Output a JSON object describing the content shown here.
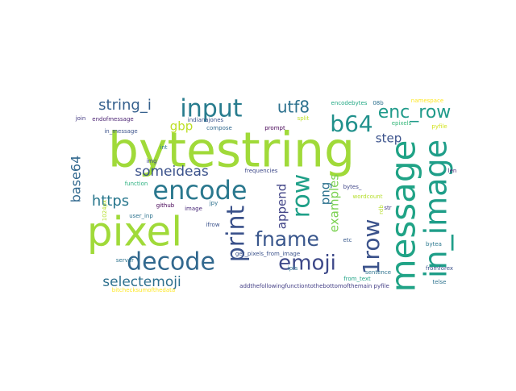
{
  "wordcloud": {
    "words": [
      {
        "id": "bytestring",
        "text": "bytestring",
        "color": "#a0da39"
      },
      {
        "id": "pixel",
        "text": "pixel",
        "color": "#a0da39"
      },
      {
        "id": "encode",
        "text": "encode",
        "color": "#2a788e"
      },
      {
        "id": "decode",
        "text": "decode",
        "color": "#31688e"
      },
      {
        "id": "message",
        "text": "message",
        "color": "#20a386"
      },
      {
        "id": "in-image",
        "text": "in_image",
        "color": "#1f9e89"
      },
      {
        "id": "input",
        "text": "input",
        "color": "#287c8e"
      },
      {
        "id": "print",
        "text": "print",
        "color": "#3b528b"
      },
      {
        "id": "emoji",
        "text": "emoji",
        "color": "#3e4989"
      },
      {
        "id": "fname",
        "text": "fname",
        "color": "#39568c"
      },
      {
        "id": "row",
        "text": "row",
        "color": "#1fa088"
      },
      {
        "id": "1row",
        "text": "1row",
        "color": "#3b528b"
      },
      {
        "id": "b64",
        "text": "b64",
        "color": "#21918c"
      },
      {
        "id": "enc-row",
        "text": "enc_row",
        "color": "#1f9a8a"
      },
      {
        "id": "utf8",
        "text": "utf8",
        "color": "#2c718e"
      },
      {
        "id": "string-i",
        "text": "string_i",
        "color": "#35608d"
      },
      {
        "id": "https",
        "text": "https",
        "color": "#2a788e"
      },
      {
        "id": "someideas",
        "text": "someideas",
        "color": "#3b528b"
      },
      {
        "id": "selectemoji",
        "text": "selectemoji",
        "color": "#2d708e"
      },
      {
        "id": "base64",
        "text": "base64",
        "color": "#31688e"
      },
      {
        "id": "gbp",
        "text": "gbp",
        "color": "#bddf26"
      },
      {
        "id": "step",
        "text": "step",
        "color": "#3b528b"
      },
      {
        "id": "examples",
        "text": "examples",
        "color": "#7ad151"
      },
      {
        "id": "append",
        "text": "append",
        "color": "#414487"
      },
      {
        "id": "png",
        "text": "png",
        "color": "#2c728e"
      },
      {
        "id": "join",
        "text": "join",
        "color": "#443a83"
      },
      {
        "id": "endofmessage",
        "text": "endofmessage",
        "color": "#481f70"
      },
      {
        "id": "indianajones",
        "text": "indianajones",
        "color": "#3b528b"
      },
      {
        "id": "split",
        "text": "split",
        "color": "#bddf26"
      },
      {
        "id": "encodebytes",
        "text": "encodebytes",
        "color": "#22a884"
      },
      {
        "id": "08b",
        "text": "08b",
        "color": "#2d708e"
      },
      {
        "id": "namespace",
        "text": "namespace",
        "color": "#fde725"
      },
      {
        "id": "in-message",
        "text": "in_message",
        "color": "#3b528b"
      },
      {
        "id": "compose",
        "text": "compose",
        "color": "#31688e"
      },
      {
        "id": "prompt",
        "text": "prompt",
        "color": "#440154"
      },
      {
        "id": "epixels",
        "text": "epixels",
        "color": "#35b779"
      },
      {
        "id": "pyfile",
        "text": "pyfile",
        "color": "#d2e21b"
      },
      {
        "id": "int",
        "text": "int",
        "color": "#2a788e"
      },
      {
        "id": "img",
        "text": "img",
        "color": "#3e4989"
      },
      {
        "id": "frequencies",
        "text": "frequencies",
        "color": "#3e4989"
      },
      {
        "id": "len",
        "text": "len",
        "color": "#482475"
      },
      {
        "id": "function",
        "text": "function",
        "color": "#2ab07f"
      },
      {
        "id": "bytes",
        "text": "bytes_",
        "color": "#404688"
      },
      {
        "id": "wordcount",
        "text": "wordcount",
        "color": "#b5de2b"
      },
      {
        "id": "rdb",
        "text": "rdb",
        "color": "#b5de2b"
      },
      {
        "id": "github",
        "text": "github",
        "color": "#440154"
      },
      {
        "id": "image",
        "text": "image",
        "color": "#482878"
      },
      {
        "id": "jpy",
        "text": "jpy",
        "color": "#2d708e"
      },
      {
        "id": "str",
        "text": "str",
        "color": "#443a83"
      },
      {
        "id": "user-inp",
        "text": "user_inp",
        "color": "#2c728e"
      },
      {
        "id": "ifrow",
        "text": "ifrow",
        "color": "#3b528b"
      },
      {
        "id": "1024px",
        "text": "1024px",
        "color": "#b5de2b"
      },
      {
        "id": "etc",
        "text": "etc",
        "color": "#38598c"
      },
      {
        "id": "bytea",
        "text": "bytea",
        "color": "#2a788e"
      },
      {
        "id": "server",
        "text": "server",
        "color": "#2c728e"
      },
      {
        "id": "get-pixels",
        "text": "get_pixels_from_image",
        "color": "#3b528b"
      },
      {
        "id": "ipfs",
        "text": "ipfs",
        "color": "#2d708e"
      },
      {
        "id": "sentence",
        "text": "sentence",
        "color": "#2c728e"
      },
      {
        "id": "fromforex",
        "text": "fromforex",
        "color": "#3b528b"
      },
      {
        "id": "from-text",
        "text": "from_text",
        "color": "#20a386"
      },
      {
        "id": "bitchecksum",
        "text": "bitchecksumofthedata",
        "color": "#fde725"
      },
      {
        "id": "addthefollowing",
        "text": "addthefollowingfunctiontothebottomofthemain pyfile",
        "color": "#433e85"
      },
      {
        "id": "telse",
        "text": "telse",
        "color": "#2c728e"
      }
    ]
  }
}
